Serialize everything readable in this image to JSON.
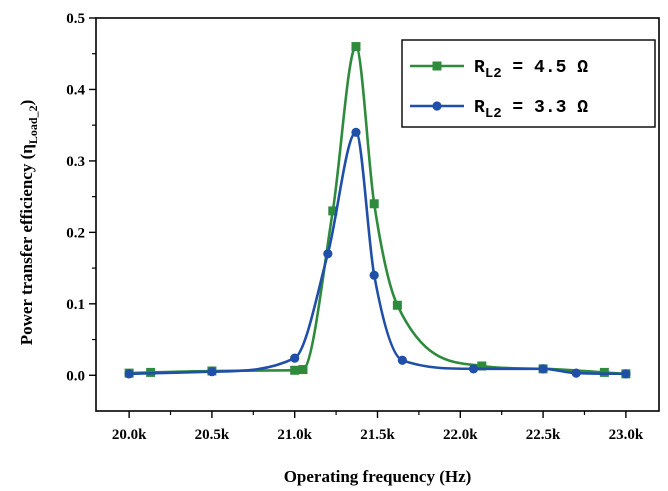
{
  "chart_data": {
    "type": "line",
    "xlabel": "Operating frequency (Hz)",
    "ylabel": "Power transfer efficiency (η",
    "ylabel_sub": "Load_2",
    "ylabel_end": ")",
    "xlim": [
      19800,
      23200
    ],
    "ylim": [
      -0.05,
      0.5
    ],
    "x_ticks": [
      20000,
      20500,
      21000,
      21500,
      22000,
      22500,
      23000
    ],
    "x_tick_labels": [
      "20.0k",
      "20.5k",
      "21.0k",
      "21.5k",
      "22.0k",
      "22.5k",
      "23.0k"
    ],
    "y_ticks": [
      0.0,
      0.1,
      0.2,
      0.3,
      0.4,
      0.5
    ],
    "y_tick_labels": [
      "0.0",
      "0.1",
      "0.2",
      "0.3",
      "0.4",
      "0.5"
    ],
    "grid": false,
    "legend_position": "top-right",
    "series": [
      {
        "name_main": "R",
        "name_sub": "L2",
        "name_rest": " = 4.5 Ω",
        "color": "#2e8b3c",
        "marker": "square",
        "x": [
          20000,
          20130,
          20500,
          21000,
          21050,
          21230,
          21370,
          21480,
          21620,
          22130,
          22500,
          22870,
          23000
        ],
        "y": [
          0.003,
          0.004,
          0.006,
          0.007,
          0.008,
          0.23,
          0.46,
          0.24,
          0.098,
          0.013,
          0.009,
          0.004,
          0.002
        ]
      },
      {
        "name_main": "R",
        "name_sub": "L2",
        "name_rest": " = 3.3 Ω",
        "color": "#1f4fa8",
        "marker": "circle",
        "x": [
          20000,
          20500,
          21000,
          21200,
          21370,
          21480,
          21650,
          22080,
          22500,
          22700,
          23000
        ],
        "y": [
          0.002,
          0.005,
          0.024,
          0.17,
          0.34,
          0.14,
          0.021,
          0.009,
          0.009,
          0.003,
          0.002
        ]
      }
    ]
  }
}
